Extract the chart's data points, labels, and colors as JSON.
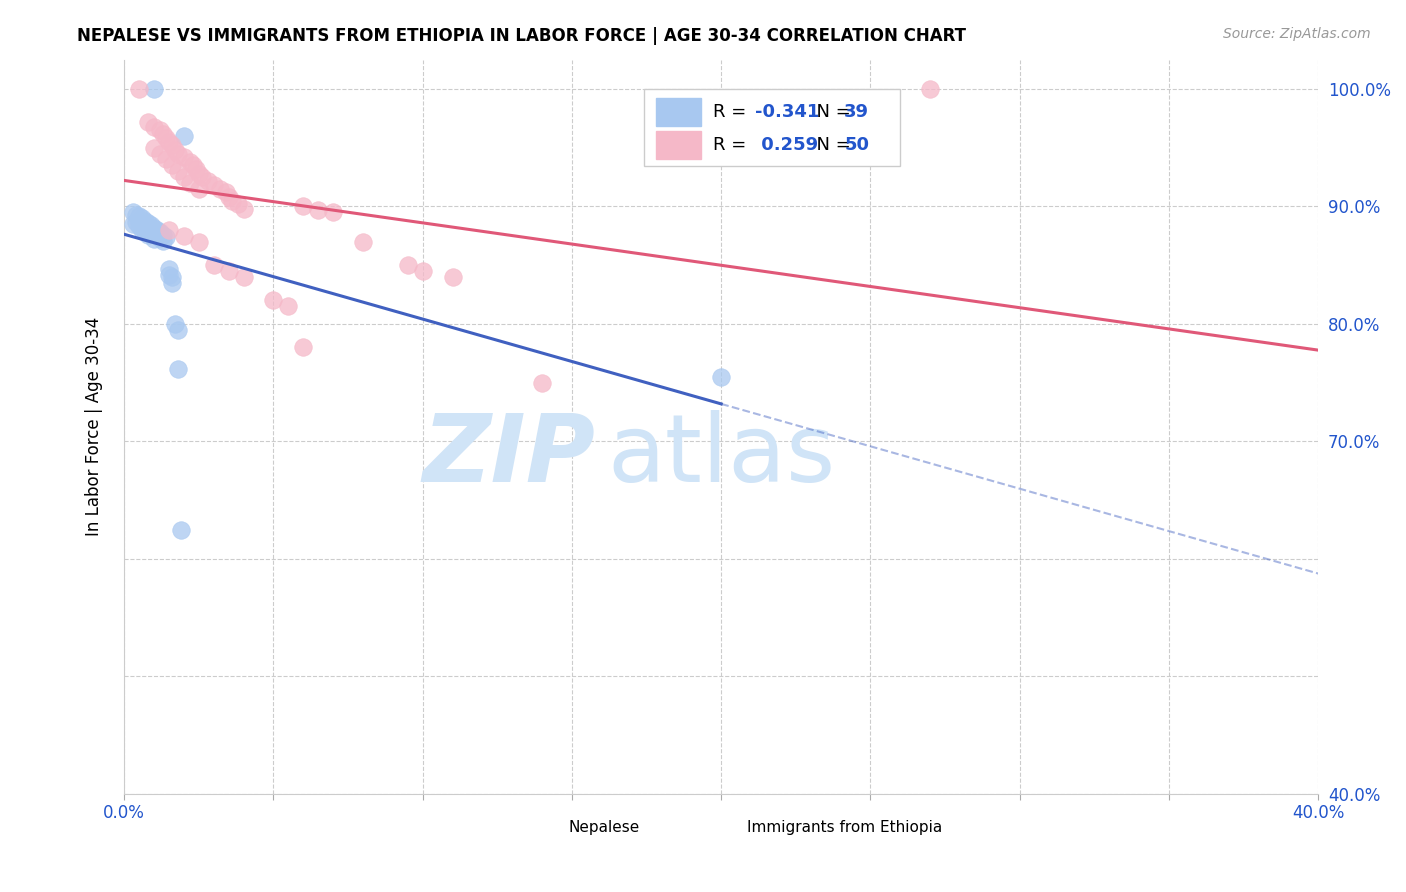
{
  "title": "NEPALESE VS IMMIGRANTS FROM ETHIOPIA IN LABOR FORCE | AGE 30-34 CORRELATION CHART",
  "source": "Source: ZipAtlas.com",
  "ylabel": "In Labor Force | Age 30-34",
  "xlim": [
    0.0,
    0.4
  ],
  "ylim": [
    0.4,
    1.025
  ],
  "xticks": [
    0.0,
    0.05,
    0.1,
    0.15,
    0.2,
    0.25,
    0.3,
    0.35,
    0.4
  ],
  "xticklabels": [
    "0.0%",
    "",
    "",
    "",
    "",
    "",
    "",
    "",
    "40.0%"
  ],
  "yticks": [
    0.4,
    0.5,
    0.6,
    0.7,
    0.8,
    0.9,
    1.0
  ],
  "yticklabels": [
    "40.0%",
    "",
    "",
    "70.0%",
    "80.0%",
    "90.0%",
    "100.0%"
  ],
  "legend_R_blue": "-0.341",
  "legend_N_blue": "39",
  "legend_R_pink": "0.259",
  "legend_N_pink": "50",
  "blue_color": "#a8c8f0",
  "pink_color": "#f5b8c8",
  "blue_line_color": "#4060c0",
  "pink_line_color": "#e05878",
  "nepalese_x": [
    0.01,
    0.02,
    0.003,
    0.003,
    0.004,
    0.004,
    0.005,
    0.005,
    0.005,
    0.006,
    0.006,
    0.006,
    0.007,
    0.007,
    0.007,
    0.008,
    0.008,
    0.008,
    0.009,
    0.009,
    0.01,
    0.01,
    0.01,
    0.011,
    0.011,
    0.012,
    0.012,
    0.013,
    0.013,
    0.014,
    0.015,
    0.015,
    0.016,
    0.016,
    0.017,
    0.018,
    0.2,
    0.018,
    0.019
  ],
  "nepalese_y": [
    1.0,
    0.96,
    0.895,
    0.885,
    0.893,
    0.887,
    0.892,
    0.888,
    0.883,
    0.89,
    0.885,
    0.88,
    0.888,
    0.883,
    0.878,
    0.886,
    0.881,
    0.876,
    0.884,
    0.879,
    0.882,
    0.877,
    0.872,
    0.88,
    0.875,
    0.878,
    0.873,
    0.876,
    0.871,
    0.874,
    0.847,
    0.842,
    0.84,
    0.835,
    0.8,
    0.795,
    0.755,
    0.762,
    0.625
  ],
  "ethiopia_x": [
    0.005,
    0.27,
    0.008,
    0.01,
    0.012,
    0.013,
    0.014,
    0.015,
    0.016,
    0.017,
    0.018,
    0.02,
    0.022,
    0.023,
    0.024,
    0.025,
    0.026,
    0.028,
    0.03,
    0.032,
    0.034,
    0.035,
    0.036,
    0.038,
    0.04,
    0.01,
    0.012,
    0.014,
    0.016,
    0.018,
    0.02,
    0.022,
    0.025,
    0.06,
    0.065,
    0.07,
    0.08,
    0.095,
    0.1,
    0.11,
    0.015,
    0.02,
    0.025,
    0.03,
    0.035,
    0.04,
    0.05,
    0.055,
    0.06,
    0.14
  ],
  "ethiopia_y": [
    1.0,
    1.0,
    0.972,
    0.968,
    0.965,
    0.962,
    0.958,
    0.955,
    0.952,
    0.948,
    0.945,
    0.942,
    0.938,
    0.935,
    0.932,
    0.928,
    0.925,
    0.922,
    0.918,
    0.915,
    0.912,
    0.908,
    0.905,
    0.902,
    0.898,
    0.95,
    0.945,
    0.94,
    0.935,
    0.93,
    0.925,
    0.92,
    0.915,
    0.9,
    0.897,
    0.895,
    0.87,
    0.85,
    0.845,
    0.84,
    0.88,
    0.875,
    0.87,
    0.85,
    0.845,
    0.84,
    0.82,
    0.815,
    0.78,
    0.75
  ]
}
